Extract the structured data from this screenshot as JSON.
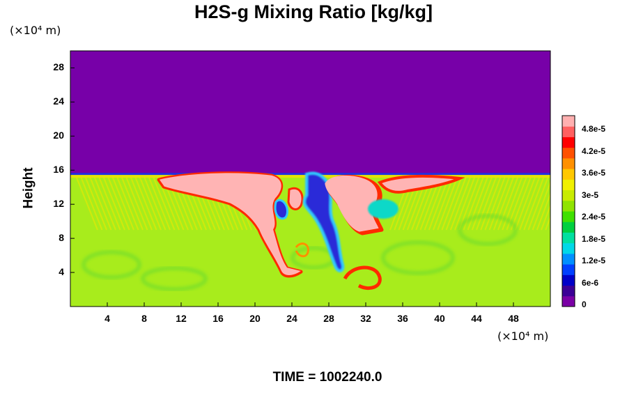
{
  "title": "H2S-g Mixing Ratio [kg/kg]",
  "time_label": "TIME = 1002240.0",
  "chart_data": {
    "type": "heatmap",
    "title": "H2S-g Mixing Ratio [kg/kg]",
    "ylabel": "Height",
    "y_unit": "(×10⁴ m)",
    "x_unit": "(×10⁴ m)",
    "xlim": [
      0,
      52
    ],
    "ylim": [
      0,
      30
    ],
    "xticks": [
      4,
      8,
      12,
      16,
      20,
      24,
      28,
      32,
      36,
      40,
      44,
      48
    ],
    "yticks": [
      4,
      8,
      12,
      16,
      20,
      24,
      28
    ],
    "colorbar": {
      "ticks": [
        "0",
        "6e-6",
        "1.2e-5",
        "1.8e-5",
        "2.4e-5",
        "3e-5",
        "3.6e-5",
        "4.2e-5",
        "4.8e-5"
      ],
      "range": [
        0,
        5.2e-05
      ],
      "colors": [
        "#7b00a6",
        "#3c0096",
        "#0000c8",
        "#0040ff",
        "#0090ff",
        "#00d8e8",
        "#00e0a0",
        "#00d040",
        "#40e000",
        "#90e400",
        "#c8ec00",
        "#f0f000",
        "#ffc800",
        "#ff9000",
        "#ff5000",
        "#ff0000",
        "#ff6060",
        "#ffb0b0"
      ]
    },
    "fields": {
      "upper_layer_value": 0,
      "lower_layer_value": 3.3e-05,
      "interface_height": 15.6
    }
  },
  "colors": {
    "upper": "#7700a8",
    "lower": "#a8ec1c",
    "high": "#ffb4b4",
    "edge_red": "#ff2a00",
    "low": "#1020d0"
  }
}
